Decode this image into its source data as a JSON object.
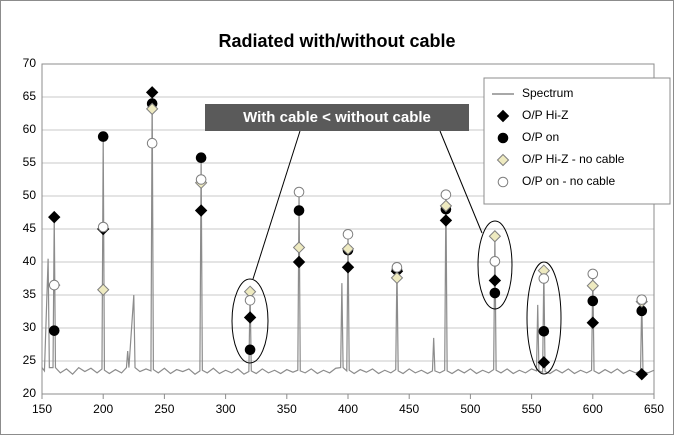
{
  "chart_data": {
    "type": "line",
    "title": "Radiated with/without cable",
    "annotations": [
      "With cable < without cable"
    ],
    "xlim": [
      150,
      650
    ],
    "xticks": [
      150,
      200,
      250,
      300,
      350,
      400,
      450,
      500,
      550,
      600,
      650
    ],
    "ylim": [
      20,
      70
    ],
    "yticks": [
      20,
      25,
      30,
      35,
      40,
      45,
      50,
      55,
      60,
      65,
      70
    ],
    "grid": true,
    "legend": "upper right",
    "x": [
      160,
      200,
      240,
      280,
      320,
      360,
      400,
      440,
      480,
      520,
      560,
      600,
      640
    ],
    "series": [
      {
        "name": "Spectrum",
        "color": "#8c8c8c",
        "marker": "line",
        "x": [
          150,
          152,
          155,
          156,
          159,
          160,
          161,
          165,
          170,
          175,
          180,
          185,
          190,
          195,
          199,
          200,
          201,
          205,
          210,
          215,
          219,
          220,
          221,
          225,
          226,
          230,
          235,
          239,
          240,
          241,
          245,
          250,
          255,
          260,
          265,
          270,
          275,
          279,
          280,
          281,
          285,
          290,
          295,
          300,
          305,
          310,
          315,
          319,
          320,
          321,
          325,
          330,
          335,
          340,
          345,
          350,
          355,
          359,
          360,
          361,
          365,
          370,
          375,
          380,
          385,
          390,
          394,
          395,
          396,
          399,
          400,
          401,
          405,
          410,
          415,
          420,
          425,
          430,
          435,
          439,
          440,
          441,
          445,
          450,
          455,
          460,
          465,
          469,
          470,
          471,
          475,
          479,
          480,
          481,
          485,
          490,
          495,
          500,
          505,
          510,
          515,
          519,
          520,
          521,
          525,
          530,
          535,
          540,
          545,
          550,
          554,
          555,
          556,
          559,
          560,
          561,
          565,
          570,
          575,
          580,
          585,
          590,
          595,
          599,
          600,
          601,
          605,
          610,
          615,
          620,
          625,
          630,
          635,
          639,
          640,
          641,
          645,
          650
        ],
        "values": [
          24,
          23.5,
          40.5,
          24,
          24,
          47,
          24,
          23.2,
          23.8,
          23,
          24,
          23.4,
          23.9,
          23.2,
          23.8,
          59,
          23.6,
          23.1,
          23.7,
          23.2,
          24,
          26.5,
          24,
          35,
          24,
          23.4,
          23.8,
          23.5,
          65.8,
          23.7,
          23.2,
          23.9,
          23.1,
          23.7,
          23.4,
          23.8,
          23,
          23.5,
          56,
          23.6,
          23.2,
          23.9,
          23.1,
          23.6,
          23.2,
          23.8,
          23,
          23.4,
          35.6,
          23.5,
          23.1,
          23.8,
          23.2,
          23.6,
          23.1,
          23.7,
          23.3,
          23.6,
          50.8,
          23.5,
          23.2,
          23.8,
          23.1,
          23.6,
          23.2,
          23.9,
          24,
          36.8,
          24,
          23.5,
          44.3,
          23.6,
          23.1,
          23.7,
          23.3,
          23.8,
          23.1,
          23.6,
          23.2,
          23.7,
          39.3,
          23.5,
          23.1,
          23.8,
          23.2,
          23.6,
          23.1,
          23.5,
          28.5,
          23.5,
          23.2,
          23.6,
          50.3,
          23.5,
          23.1,
          23.7,
          23.2,
          23.8,
          23.1,
          23.6,
          23.2,
          23.7,
          44,
          23.6,
          23.2,
          23.8,
          23.1,
          23.6,
          23.2,
          23.8,
          23.5,
          33.5,
          23.5,
          23.3,
          38.8,
          23.4,
          23.1,
          23.7,
          23.2,
          23.8,
          23.1,
          23.6,
          23.2,
          23.6,
          38.3,
          23.5,
          23.1,
          23.7,
          23.2,
          23.8,
          23.1,
          23.6,
          23.2,
          23.5,
          34.4,
          23.4,
          23.2,
          23.6
        ]
      },
      {
        "name": "O/P Hi-Z",
        "color": "#000000",
        "marker": "diamond",
        "values": [
          46.8,
          45,
          65.7,
          47.8,
          31.6,
          40,
          39.2,
          38.6,
          46.3,
          37.2,
          24.8,
          30.8,
          23
        ]
      },
      {
        "name": "O/P on",
        "color": "#000000",
        "marker": "circle",
        "values": [
          29.6,
          59,
          64,
          55.8,
          26.7,
          47.8,
          41.8,
          38.8,
          48,
          35.3,
          29.5,
          34.1,
          32.6
        ]
      },
      {
        "name": "O/P Hi-Z - no cable",
        "color": "#eeeac0",
        "marker": "diamond",
        "values": [
          36.5,
          35.8,
          63.2,
          52,
          35.5,
          42.2,
          42,
          37.6,
          48.5,
          43.9,
          38.7,
          36.4,
          34
        ]
      },
      {
        "name": "O/P on - no cable",
        "color": "#ffffff",
        "marker": "circle",
        "values": [
          36.5,
          45.3,
          58,
          52.5,
          34.2,
          50.6,
          44.2,
          39.2,
          50.2,
          40.1,
          37.5,
          38.2,
          34.3
        ]
      }
    ]
  }
}
